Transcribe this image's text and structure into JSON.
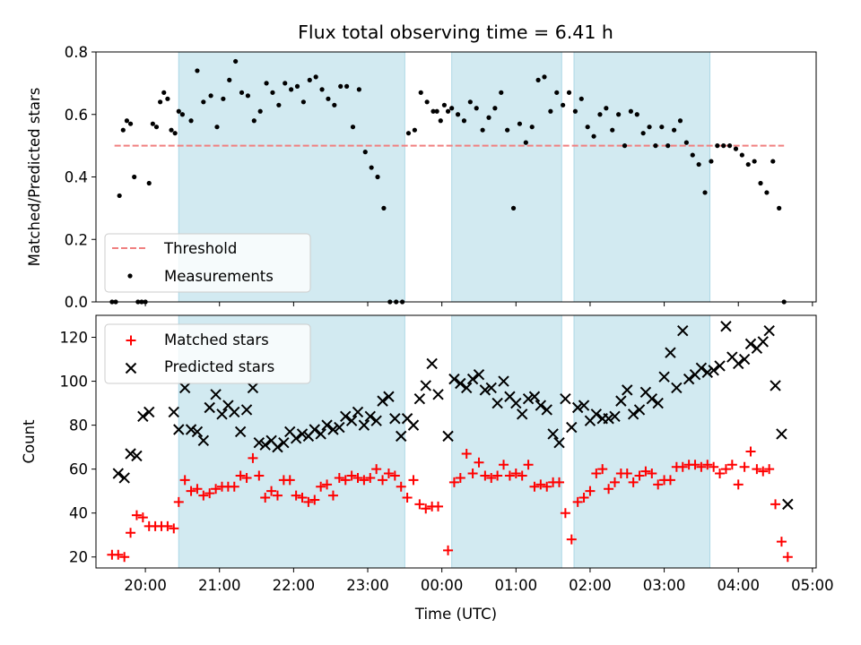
{
  "figure": {
    "title": "Flux total observing time = 6.41 h"
  },
  "colors": {
    "band": "#add8e6",
    "threshold": "#f08080",
    "measurements": "#000000",
    "matched": "#ff0000",
    "predicted": "#000000"
  },
  "chart_data": [
    {
      "type": "scatter",
      "panel": "top",
      "ylabel": "Matched/Predicted stars",
      "xlabel": "",
      "xlim": [
        "19:20",
        "05:03"
      ],
      "ylim": [
        0,
        0.8
      ],
      "yticks": [
        "0.0",
        "0.2",
        "0.4",
        "0.6",
        "0.8"
      ],
      "grid": false,
      "legend": {
        "position": "lower-left",
        "entries": [
          "Threshold",
          "Measurements"
        ]
      },
      "shaded_intervals": [
        [
          "20:27",
          "23:30"
        ],
        [
          "00:08",
          "01:37"
        ],
        [
          "01:47",
          "03:37"
        ]
      ],
      "threshold": {
        "name": "Threshold",
        "y": 0.5,
        "x_range": [
          "19:35",
          "04:37"
        ]
      },
      "series": [
        {
          "name": "Measurements",
          "x": [
            "19:33",
            "19:36",
            "19:39",
            "19:42",
            "19:45",
            "19:48",
            "19:51",
            "19:54",
            "19:57",
            "20:00",
            "20:03",
            "20:06",
            "20:09",
            "20:12",
            "20:15",
            "20:18",
            "20:21",
            "20:24",
            "20:27",
            "20:30",
            "20:37",
            "20:42",
            "20:47",
            "20:53",
            "20:58",
            "21:03",
            "21:08",
            "21:13",
            "21:18",
            "21:23",
            "21:28",
            "21:33",
            "21:38",
            "21:43",
            "21:48",
            "21:53",
            "21:58",
            "22:03",
            "22:08",
            "22:13",
            "22:18",
            "22:23",
            "22:28",
            "22:33",
            "22:38",
            "22:43",
            "22:48",
            "22:53",
            "22:58",
            "23:03",
            "23:08",
            "23:13",
            "23:18",
            "23:23",
            "23:28",
            "23:33",
            "23:38",
            "23:43",
            "23:48",
            "23:53",
            "23:56",
            "23:59",
            "00:02",
            "00:05",
            "00:08",
            "00:13",
            "00:18",
            "00:23",
            "00:28",
            "00:33",
            "00:38",
            "00:43",
            "00:48",
            "00:53",
            "00:58",
            "01:03",
            "01:08",
            "01:13",
            "01:18",
            "01:23",
            "01:28",
            "01:33",
            "01:38",
            "01:43",
            "01:48",
            "01:53",
            "01:58",
            "02:03",
            "02:08",
            "02:13",
            "02:18",
            "02:23",
            "02:28",
            "02:33",
            "02:38",
            "02:43",
            "02:48",
            "02:53",
            "02:58",
            "03:03",
            "03:08",
            "03:13",
            "03:18",
            "03:23",
            "03:28",
            "03:33",
            "03:38",
            "03:43",
            "03:48",
            "03:53",
            "03:58",
            "04:03",
            "04:08",
            "04:13",
            "04:18",
            "04:23",
            "04:28",
            "04:33",
            "04:37"
          ],
          "y": [
            0,
            0,
            0.34,
            0.55,
            0.58,
            0.57,
            0.4,
            0,
            0,
            0,
            0.38,
            0.57,
            0.56,
            0.64,
            0.67,
            0.65,
            0.55,
            0.54,
            0.61,
            0.6,
            0.58,
            0.74,
            0.64,
            0.66,
            0.56,
            0.65,
            0.71,
            0.77,
            0.67,
            0.66,
            0.58,
            0.61,
            0.7,
            0.67,
            0.63,
            0.7,
            0.68,
            0.69,
            0.64,
            0.71,
            0.72,
            0.68,
            0.65,
            0.63,
            0.69,
            0.69,
            0.56,
            0.68,
            0.48,
            0.43,
            0.4,
            0.3,
            0,
            0,
            0,
            0.54,
            0.55,
            0.67,
            0.64,
            0.61,
            0.61,
            0.58,
            0.63,
            0.61,
            0.62,
            0.6,
            0.58,
            0.64,
            0.62,
            0.55,
            0.59,
            0.62,
            0.67,
            0.55,
            0.3,
            0.57,
            0.51,
            0.56,
            0.71,
            0.72,
            0.61,
            0.67,
            0.63,
            0.67,
            0.61,
            0.65,
            0.56,
            0.53,
            0.6,
            0.62,
            0.55,
            0.6,
            0.5,
            0.61,
            0.6,
            0.54,
            0.56,
            0.5,
            0.56,
            0.5,
            0.55,
            0.58,
            0.51,
            0.47,
            0.44,
            0.35,
            0.45,
            0.5,
            0.5,
            0.5,
            0.49,
            0.47,
            0.44,
            0.45,
            0.38,
            0.35,
            0.45,
            0.3,
            0
          ]
        }
      ]
    },
    {
      "type": "scatter",
      "panel": "bottom",
      "ylabel": "Count",
      "xlabel": "Time (UTC)",
      "xlim": [
        "19:20",
        "05:03"
      ],
      "ylim": [
        15,
        130
      ],
      "yticks": [
        "20",
        "40",
        "60",
        "80",
        "100",
        "120"
      ],
      "xticks": [
        "20:00",
        "21:00",
        "22:00",
        "23:00",
        "00:00",
        "01:00",
        "02:00",
        "03:00",
        "04:00",
        "05:00"
      ],
      "grid": false,
      "legend": {
        "position": "top-left",
        "entries": [
          "Matched stars",
          "Predicted stars"
        ]
      },
      "shaded_intervals": [
        [
          "20:27",
          "23:30"
        ],
        [
          "00:08",
          "01:37"
        ],
        [
          "01:47",
          "03:37"
        ]
      ],
      "series": [
        {
          "name": "Matched stars",
          "marker": "+",
          "x": [
            "19:33",
            "19:38",
            "19:43",
            "19:48",
            "19:53",
            "19:58",
            "20:03",
            "20:08",
            "20:13",
            "20:18",
            "20:23",
            "20:27",
            "20:32",
            "20:37",
            "20:42",
            "20:47",
            "20:52",
            "20:57",
            "21:02",
            "21:07",
            "21:12",
            "21:17",
            "21:22",
            "21:27",
            "21:32",
            "21:37",
            "21:42",
            "21:47",
            "21:52",
            "21:57",
            "22:02",
            "22:07",
            "22:12",
            "22:17",
            "22:22",
            "22:27",
            "22:32",
            "22:37",
            "22:42",
            "22:47",
            "22:52",
            "22:57",
            "23:02",
            "23:07",
            "23:12",
            "23:17",
            "23:22",
            "23:27",
            "23:32",
            "23:37",
            "23:42",
            "23:47",
            "23:52",
            "23:57",
            "00:05",
            "00:10",
            "00:15",
            "00:20",
            "00:25",
            "00:30",
            "00:35",
            "00:40",
            "00:45",
            "00:50",
            "00:55",
            "01:00",
            "01:05",
            "01:10",
            "01:15",
            "01:20",
            "01:25",
            "01:30",
            "01:35",
            "01:40",
            "01:45",
            "01:50",
            "01:55",
            "02:00",
            "02:05",
            "02:10",
            "02:15",
            "02:20",
            "02:25",
            "02:30",
            "02:35",
            "02:40",
            "02:45",
            "02:50",
            "02:55",
            "03:00",
            "03:05",
            "03:10",
            "03:15",
            "03:20",
            "03:25",
            "03:30",
            "03:35",
            "03:40",
            "03:45",
            "03:50",
            "03:55",
            "04:00",
            "04:05",
            "04:10",
            "04:15",
            "04:20",
            "04:25",
            "04:30",
            "04:35",
            "04:40"
          ],
          "y": [
            21,
            21,
            20,
            31,
            39,
            38,
            34,
            34,
            34,
            34,
            33,
            45,
            55,
            50,
            51,
            48,
            49,
            51,
            52,
            52,
            52,
            57,
            56,
            65,
            57,
            47,
            50,
            48,
            55,
            55,
            48,
            47,
            45,
            46,
            52,
            53,
            48,
            56,
            55,
            57,
            56,
            55,
            56,
            60,
            55,
            58,
            57,
            52,
            47,
            55,
            44,
            42,
            43,
            43,
            23,
            54,
            56,
            67,
            58,
            63,
            57,
            56,
            57,
            62,
            57,
            58,
            57,
            62,
            52,
            53,
            52,
            54,
            54,
            40,
            28,
            45,
            47,
            50,
            58,
            60,
            51,
            54,
            58,
            58,
            54,
            57,
            59,
            58,
            53,
            55,
            55,
            61,
            61,
            62,
            62,
            61,
            62,
            61,
            58,
            60,
            62,
            53,
            61,
            68,
            60,
            59,
            60,
            44,
            27,
            20
          ]
        },
        {
          "name": "Predicted stars",
          "marker": "x",
          "x": [
            "19:38",
            "19:43",
            "19:48",
            "19:53",
            "19:58",
            "20:03",
            "20:23",
            "20:27",
            "20:32",
            "20:37",
            "20:42",
            "20:47",
            "20:52",
            "20:57",
            "21:02",
            "21:07",
            "21:12",
            "21:17",
            "21:22",
            "21:27",
            "21:32",
            "21:37",
            "21:42",
            "21:47",
            "21:52",
            "21:57",
            "22:02",
            "22:07",
            "22:12",
            "22:17",
            "22:22",
            "22:27",
            "22:32",
            "22:37",
            "22:42",
            "22:47",
            "22:52",
            "22:57",
            "23:02",
            "23:07",
            "23:12",
            "23:17",
            "23:22",
            "23:27",
            "23:32",
            "23:37",
            "23:42",
            "23:47",
            "23:52",
            "23:57",
            "00:05",
            "00:10",
            "00:15",
            "00:20",
            "00:25",
            "00:30",
            "00:35",
            "00:40",
            "00:45",
            "00:50",
            "00:55",
            "01:00",
            "01:05",
            "01:10",
            "01:15",
            "01:20",
            "01:25",
            "01:30",
            "01:35",
            "01:40",
            "01:45",
            "01:50",
            "01:55",
            "02:00",
            "02:05",
            "02:10",
            "02:15",
            "02:20",
            "02:25",
            "02:30",
            "02:35",
            "02:40",
            "02:45",
            "02:50",
            "02:55",
            "03:00",
            "03:05",
            "03:10",
            "03:15",
            "03:20",
            "03:25",
            "03:30",
            "03:35",
            "03:40",
            "03:45",
            "03:50",
            "03:55",
            "04:00",
            "04:05",
            "04:10",
            "04:15",
            "04:20",
            "04:25",
            "04:30",
            "04:35",
            "04:40"
          ],
          "y": [
            58,
            56,
            67,
            66,
            84,
            86,
            86,
            78,
            97,
            78,
            77,
            73,
            88,
            94,
            85,
            89,
            86,
            77,
            87,
            97,
            72,
            71,
            73,
            70,
            72,
            77,
            74,
            76,
            75,
            78,
            76,
            80,
            78,
            79,
            84,
            82,
            86,
            80,
            84,
            82,
            91,
            93,
            83,
            75,
            83,
            80,
            92,
            98,
            108,
            94,
            75,
            101,
            99,
            97,
            101,
            103,
            96,
            97,
            90,
            100,
            93,
            90,
            85,
            92,
            93,
            89,
            87,
            76,
            72,
            92,
            79,
            88,
            89,
            82,
            85,
            83,
            83,
            84,
            91,
            96,
            85,
            87,
            95,
            92,
            90,
            102,
            113,
            97,
            123,
            101,
            103,
            106,
            104,
            105,
            107,
            125,
            111,
            108,
            110,
            117,
            115,
            118,
            123,
            98,
            76,
            44
          ]
        }
      ]
    }
  ]
}
